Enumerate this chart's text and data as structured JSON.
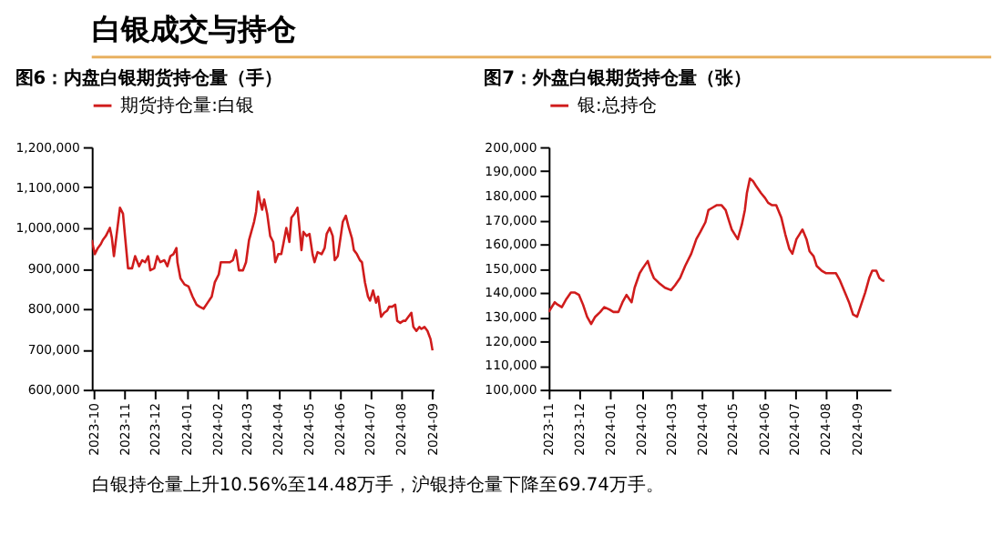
{
  "chart_data": [
    {
      "type": "line",
      "title": "图6：内盘白银期货持仓量（手）",
      "legend": "top",
      "grid": false,
      "marker": "none",
      "line_style": "solid",
      "xlim": [
        "2023-09-29",
        "2024-09-02"
      ],
      "xticks": [
        {
          "value": "2023-10-01",
          "label": "2023-10"
        },
        {
          "value": "2023-11-01",
          "label": "2023-11"
        },
        {
          "value": "2023-12-01",
          "label": "2023-12"
        },
        {
          "value": "2024-01-01",
          "label": "2024-01"
        },
        {
          "value": "2024-02-01",
          "label": "2024-02"
        },
        {
          "value": "2024-03-01",
          "label": "2024-03"
        },
        {
          "value": "2024-04-01",
          "label": "2024-04"
        },
        {
          "value": "2024-05-01",
          "label": "2024-05"
        },
        {
          "value": "2024-06-01",
          "label": "2024-06"
        },
        {
          "value": "2024-07-01",
          "label": "2024-07"
        },
        {
          "value": "2024-08-01",
          "label": "2024-08"
        },
        {
          "value": "2024-09-01",
          "label": "2024-09"
        }
      ],
      "ylim": [
        600000,
        1200000
      ],
      "yticks": [
        {
          "value": 600000,
          "label": "600,000"
        },
        {
          "value": 700000,
          "label": "700,000"
        },
        {
          "value": 800000,
          "label": "800,000"
        },
        {
          "value": 900000,
          "label": "900,000"
        },
        {
          "value": 1000000,
          "label": "1,000,000"
        },
        {
          "value": 1100000,
          "label": "1,100,000"
        },
        {
          "value": 1200000,
          "label": "1,200,000"
        }
      ],
      "x": [
        "2023-09-29",
        "2023-10-02",
        "2023-10-05",
        "2023-10-08",
        "2023-10-10",
        "2023-10-13",
        "2023-10-17",
        "2023-10-19",
        "2023-10-21",
        "2023-10-24",
        "2023-10-27",
        "2023-10-30",
        "2023-11-01",
        "2023-11-04",
        "2023-11-08",
        "2023-11-11",
        "2023-11-15",
        "2023-11-18",
        "2023-11-21",
        "2023-11-24",
        "2023-11-26",
        "2023-11-30",
        "2023-12-03",
        "2023-12-06",
        "2023-12-10",
        "2023-12-13",
        "2023-12-16",
        "2023-12-19",
        "2023-12-22",
        "2023-12-23",
        "2023-12-26",
        "2023-12-30",
        "2024-01-03",
        "2024-01-07",
        "2024-01-11",
        "2024-01-14",
        "2024-01-18",
        "2024-01-22",
        "2024-01-26",
        "2024-01-29",
        "2024-02-02",
        "2024-02-04",
        "2024-02-09",
        "2024-02-13",
        "2024-02-16",
        "2024-02-19",
        "2024-02-22",
        "2024-02-26",
        "2024-02-29",
        "2024-03-03",
        "2024-03-08",
        "2024-03-10",
        "2024-03-12",
        "2024-03-14",
        "2024-03-16",
        "2024-03-18",
        "2024-03-21",
        "2024-03-24",
        "2024-03-27",
        "2024-03-29",
        "2024-04-01",
        "2024-04-04",
        "2024-04-06",
        "2024-04-09",
        "2024-04-12",
        "2024-04-14",
        "2024-04-17",
        "2024-04-20",
        "2024-04-22",
        "2024-04-24",
        "2024-04-26",
        "2024-04-29",
        "2024-05-02",
        "2024-05-05",
        "2024-05-07",
        "2024-05-10",
        "2024-05-14",
        "2024-05-17",
        "2024-05-19",
        "2024-05-22",
        "2024-05-25",
        "2024-05-27",
        "2024-05-30",
        "2024-06-02",
        "2024-06-04",
        "2024-06-07",
        "2024-06-10",
        "2024-06-13",
        "2024-06-15",
        "2024-06-18",
        "2024-06-21",
        "2024-06-23",
        "2024-06-26",
        "2024-06-29",
        "2024-07-01",
        "2024-07-04",
        "2024-07-07",
        "2024-07-09",
        "2024-07-12",
        "2024-07-15",
        "2024-07-18",
        "2024-07-20",
        "2024-07-23",
        "2024-07-26",
        "2024-07-28",
        "2024-07-31",
        "2024-08-03",
        "2024-08-05",
        "2024-08-08",
        "2024-08-11",
        "2024-08-13",
        "2024-08-16",
        "2024-08-19",
        "2024-08-21",
        "2024-08-24",
        "2024-08-27",
        "2024-08-30",
        "2024-09-01"
      ],
      "series": [
        {
          "name": "期货持仓量:白银",
          "color": "#d01c1c",
          "values": [
            970000,
            935000,
            950000,
            960000,
            970000,
            980000,
            1000000,
            975000,
            930000,
            990000,
            1050000,
            1035000,
            980000,
            900000,
            900000,
            930000,
            905000,
            920000,
            915000,
            930000,
            895000,
            900000,
            930000,
            915000,
            920000,
            905000,
            930000,
            935000,
            950000,
            915000,
            875000,
            860000,
            855000,
            830000,
            810000,
            805000,
            800000,
            815000,
            830000,
            865000,
            885000,
            915000,
            915000,
            915000,
            920000,
            945000,
            895000,
            895000,
            915000,
            970000,
            1015000,
            1040000,
            1090000,
            1065000,
            1045000,
            1070000,
            1035000,
            980000,
            965000,
            915000,
            935000,
            935000,
            960000,
            1000000,
            965000,
            1025000,
            1035000,
            1050000,
            1000000,
            945000,
            990000,
            980000,
            985000,
            935000,
            915000,
            940000,
            935000,
            950000,
            985000,
            1000000,
            980000,
            920000,
            930000,
            980000,
            1015000,
            1030000,
            1000000,
            975000,
            945000,
            935000,
            920000,
            915000,
            865000,
            830000,
            820000,
            845000,
            815000,
            830000,
            780000,
            790000,
            795000,
            805000,
            805000,
            810000,
            770000,
            765000,
            770000,
            770000,
            780000,
            790000,
            755000,
            745000,
            755000,
            750000,
            755000,
            745000,
            725000,
            697000
          ]
        }
      ]
    },
    {
      "type": "line",
      "title": "图7：外盘白银期货持仓量（张）",
      "legend": "top",
      "grid": false,
      "marker": "none",
      "line_style": "solid",
      "xlim": [
        "2023-11-01",
        "2024-10-04"
      ],
      "xticks": [
        {
          "value": "2023-11-01",
          "label": "2023-11"
        },
        {
          "value": "2023-12-01",
          "label": "2023-12"
        },
        {
          "value": "2024-01-01",
          "label": "2024-01"
        },
        {
          "value": "2024-02-01",
          "label": "2024-02"
        },
        {
          "value": "2024-03-01",
          "label": "2024-03"
        },
        {
          "value": "2024-04-01",
          "label": "2024-04"
        },
        {
          "value": "2024-05-01",
          "label": "2024-05"
        },
        {
          "value": "2024-06-01",
          "label": "2024-06"
        },
        {
          "value": "2024-07-01",
          "label": "2024-07"
        },
        {
          "value": "2024-08-01",
          "label": "2024-08"
        },
        {
          "value": "2024-09-01",
          "label": "2024-09"
        }
      ],
      "ylim": [
        100000,
        200000
      ],
      "yticks": [
        {
          "value": 100000,
          "label": "100,000"
        },
        {
          "value": 110000,
          "label": "110,000"
        },
        {
          "value": 120000,
          "label": "120,000"
        },
        {
          "value": 130000,
          "label": "130,000"
        },
        {
          "value": 140000,
          "label": "140,000"
        },
        {
          "value": 150000,
          "label": "150,000"
        },
        {
          "value": 160000,
          "label": "160,000"
        },
        {
          "value": 170000,
          "label": "170,000"
        },
        {
          "value": 180000,
          "label": "180,000"
        },
        {
          "value": 190000,
          "label": "190,000"
        },
        {
          "value": 200000,
          "label": "200,000"
        }
      ],
      "x": [
        "2023-11-01",
        "2023-11-04",
        "2023-11-07",
        "2023-11-10",
        "2023-11-14",
        "2023-11-18",
        "2023-11-23",
        "2023-11-27",
        "2023-12-01",
        "2023-12-05",
        "2023-12-09",
        "2023-12-13",
        "2023-12-17",
        "2023-12-22",
        "2023-12-26",
        "2023-12-31",
        "2024-01-04",
        "2024-01-09",
        "2024-01-13",
        "2024-01-17",
        "2024-01-22",
        "2024-01-25",
        "2024-01-30",
        "2024-02-02",
        "2024-02-07",
        "2024-02-10",
        "2024-02-13",
        "2024-02-18",
        "2024-02-24",
        "2024-03-01",
        "2024-03-05",
        "2024-03-10",
        "2024-03-15",
        "2024-03-21",
        "2024-03-26",
        "2024-03-30",
        "2024-04-04",
        "2024-04-07",
        "2024-04-11",
        "2024-04-15",
        "2024-04-20",
        "2024-04-24",
        "2024-04-27",
        "2024-04-30",
        "2024-05-03",
        "2024-05-06",
        "2024-05-10",
        "2024-05-13",
        "2024-05-15",
        "2024-05-18",
        "2024-05-21",
        "2024-05-24",
        "2024-05-29",
        "2024-06-02",
        "2024-06-05",
        "2024-06-09",
        "2024-06-13",
        "2024-06-18",
        "2024-06-22",
        "2024-06-26",
        "2024-06-29",
        "2024-07-03",
        "2024-07-06",
        "2024-07-09",
        "2024-07-13",
        "2024-07-16",
        "2024-07-20",
        "2024-07-23",
        "2024-07-28",
        "2024-08-01",
        "2024-08-06",
        "2024-08-11",
        "2024-08-15",
        "2024-08-20",
        "2024-08-24",
        "2024-08-28",
        "2024-09-01",
        "2024-09-05",
        "2024-09-09",
        "2024-09-13",
        "2024-09-16",
        "2024-09-20",
        "2024-09-23",
        "2024-09-26",
        "2024-09-28"
      ],
      "series": [
        {
          "name": "银:总持仓",
          "color": "#d01c1c",
          "values": [
            132000,
            134000,
            136000,
            135000,
            134000,
            137000,
            140000,
            140000,
            139000,
            135000,
            130000,
            127000,
            130000,
            132000,
            134000,
            133000,
            132000,
            132000,
            136000,
            139000,
            136000,
            142000,
            148000,
            150000,
            153000,
            149000,
            146000,
            144000,
            142000,
            141000,
            143000,
            146000,
            151000,
            156000,
            162000,
            165000,
            169000,
            174000,
            175000,
            176000,
            176000,
            174000,
            170000,
            166000,
            164000,
            162000,
            168000,
            174000,
            181000,
            187000,
            186000,
            184000,
            181000,
            179000,
            177000,
            176000,
            176000,
            171000,
            164000,
            158000,
            156000,
            162000,
            164000,
            166000,
            162000,
            157000,
            155000,
            151000,
            149000,
            148000,
            148000,
            148000,
            145000,
            140000,
            136000,
            131000,
            130000,
            135000,
            140000,
            146000,
            149000,
            149000,
            146000,
            145000,
            144800
          ]
        }
      ]
    },
    {
      "type": "other",
      "title": "白银成交与持仓",
      "annotations": [
        "白银持仓量上升10.56%至14.48万手，沪银持仓量下降至69.74万手。"
      ]
    }
  ]
}
